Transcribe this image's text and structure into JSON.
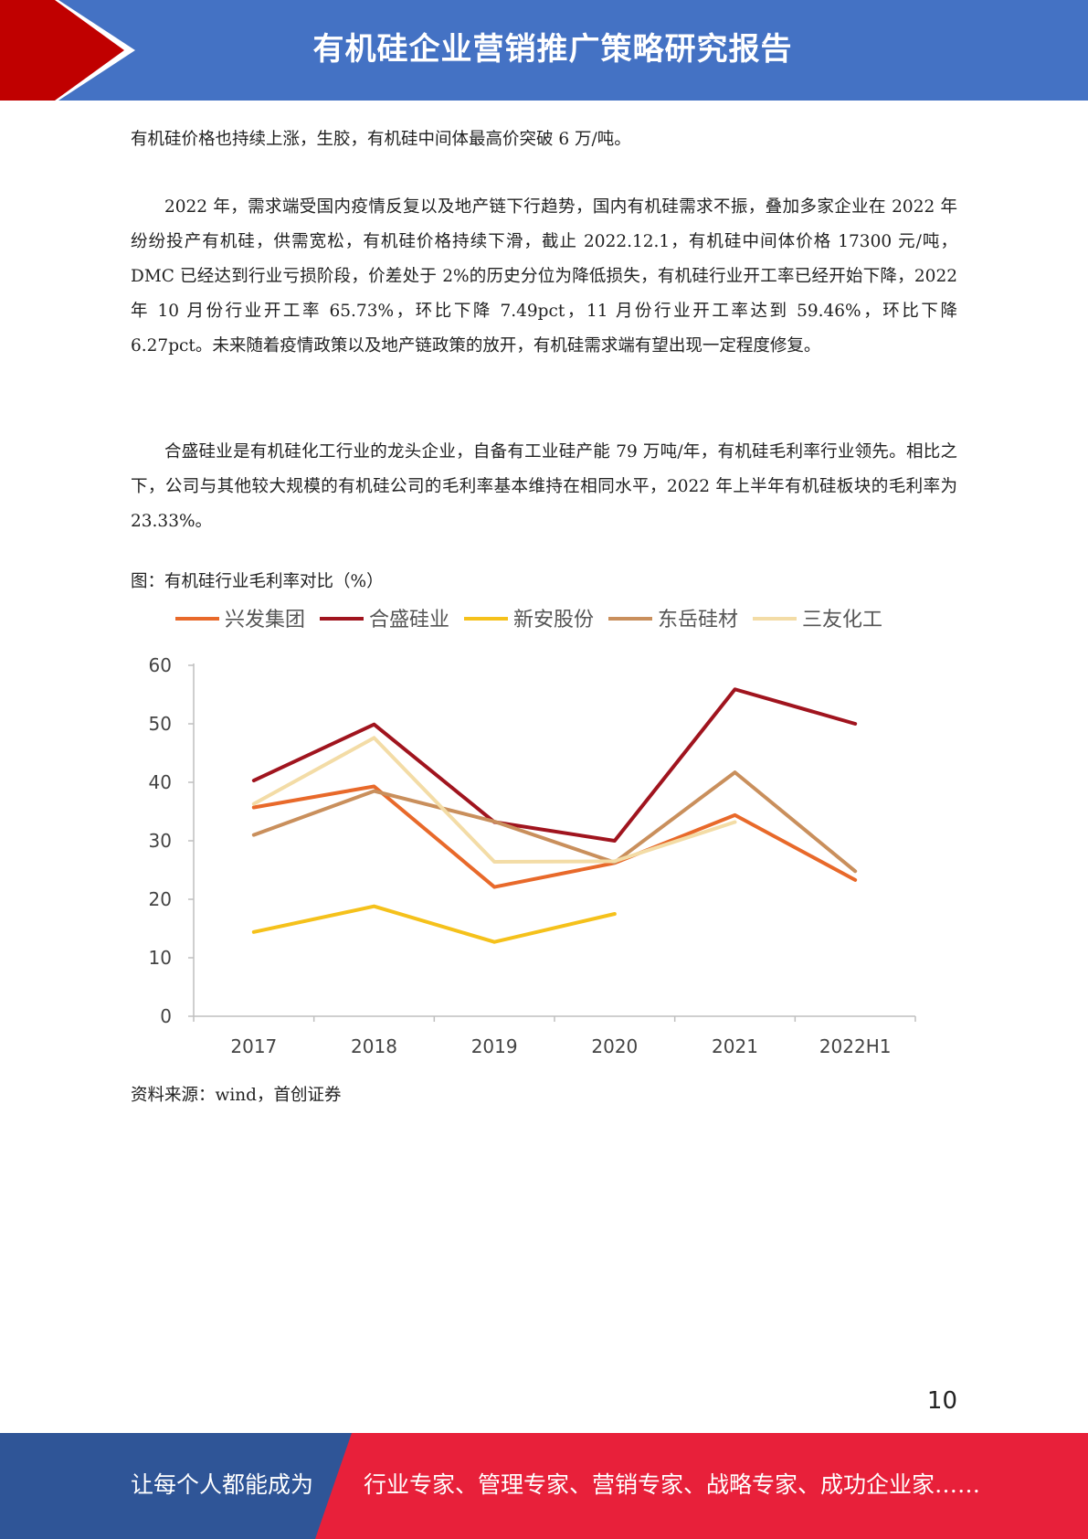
{
  "header": {
    "title": "有机硅企业营销推广策略研究报告"
  },
  "paragraphs": [
    "有机硅价格也持续上涨，生胶，有机硅中间体最高价突破 6 万/吨。",
    "2022 年，需求端受国内疫情反复以及地产链下行趋势，国内有机硅需求不振，叠加多家企业在 2022 年纷纷投产有机硅，供需宽松，有机硅价格持续下滑，截止 2022.12.1，有机硅中间体价格 17300 元/吨，DMC 已经达到行业亏损阶段，价差处于 2%的历史分位为降低损失，有机硅行业开工率已经开始下降，2022 年 10 月份行业开工率 65.73%，环比下降 7.49pct，11 月份行业开工率达到 59.46%，环比下降 6.27pct。未来随着疫情政策以及地产链政策的放开，有机硅需求端有望出现一定程度修复。",
    "合盛硅业是有机硅化工行业的龙头企业，自备有工业硅产能 79 万吨/年，有机硅毛利率行业领先。相比之下，公司与其他较大规模的有机硅公司的毛利率基本维持在相同水平，2022 年上半年有机硅板块的毛利率为 23.33%。"
  ],
  "figure": {
    "caption": "图：有机硅行业毛利率对比（%）",
    "source": "资料来源：wind，首创证券"
  },
  "chart_data": {
    "type": "line",
    "title": "",
    "xlabel": "",
    "ylabel": "",
    "categories": [
      "2017",
      "2018",
      "2019",
      "2020",
      "2021",
      "2022H1"
    ],
    "ylim": [
      0,
      60
    ],
    "yticks": [
      0,
      10,
      20,
      30,
      40,
      50,
      60
    ],
    "grid": false,
    "legend": "top",
    "series": [
      {
        "name": "兴发集团",
        "color": "#e8692a",
        "values": [
          35.7,
          39.3,
          22.1,
          26.2,
          34.4,
          23.3
        ]
      },
      {
        "name": "合盛硅业",
        "color": "#a0141e",
        "values": [
          40.3,
          49.9,
          33.2,
          30.0,
          55.9,
          50.0
        ]
      },
      {
        "name": "新安股份",
        "color": "#f5c11b",
        "values": [
          14.4,
          18.8,
          12.7,
          17.5,
          null,
          null
        ]
      },
      {
        "name": "东岳硅材",
        "color": "#c98f5c",
        "values": [
          31.0,
          38.5,
          33.3,
          26.3,
          41.7,
          24.8
        ]
      },
      {
        "name": "三友化工",
        "color": "#f3dca6",
        "values": [
          36.3,
          47.6,
          26.4,
          26.5,
          33.2,
          null
        ]
      }
    ]
  },
  "page_number": "10",
  "footer": {
    "left": "让每个人都能成为",
    "right": "行业专家、管理专家、营销专家、战略专家、成功企业家……",
    "colors": {
      "blue": "#2f5597",
      "red": "#e8203a"
    }
  }
}
